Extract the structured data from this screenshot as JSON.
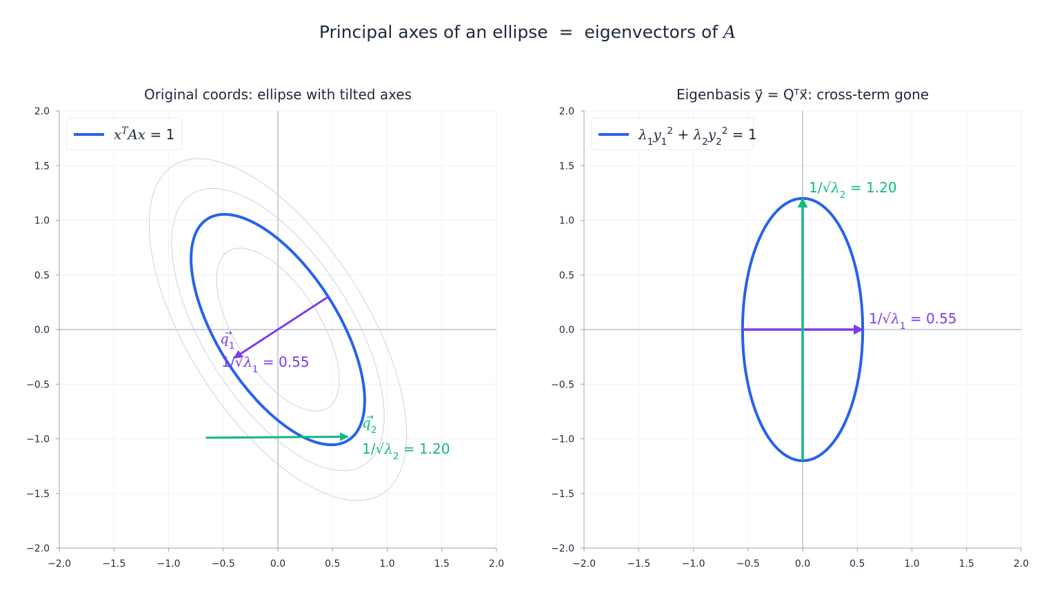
{
  "figure": {
    "title": "Principal axes of an ellipse  =  eigenvectors of A"
  },
  "colors": {
    "ellipse": "#2563eb",
    "q1": "#7c3aed",
    "q2": "#10b981",
    "contour": "#cbd0d8",
    "axis_line": "#94a3b8",
    "grid": "#eef1f5"
  },
  "chart_data": [
    {
      "type": "line",
      "title": "Original coords:  ellipse with tilted axes",
      "xlim": [
        -2.0,
        2.0
      ],
      "ylim": [
        -2.0,
        2.0
      ],
      "xticks": [
        "−2.0",
        "−1.5",
        "−1.0",
        "−0.5",
        "0.0",
        "0.5",
        "1.0",
        "1.5",
        "2.0"
      ],
      "yticks": [
        "−2.0",
        "−1.5",
        "−1.0",
        "−0.5",
        "0.0",
        "0.5",
        "1.0",
        "1.5",
        "2.0"
      ],
      "grid": true,
      "legend": {
        "placement": "upper-left",
        "entries": [
          "x⃗ᵀAx⃗ = 1"
        ]
      },
      "ellipse": {
        "center": [
          0,
          0
        ],
        "semi_major": 1.2,
        "semi_minor": 0.55,
        "major_angle_deg": -57.5
      },
      "contour_levels": [
        0.5,
        1.5,
        2.2
      ],
      "vectors": [
        {
          "name": "q1",
          "from": [
            0.46,
            0.3
          ],
          "to": [
            -0.4,
            -0.26
          ],
          "label": "q⃗₁",
          "annotation": "1/√λ₁ = 0.55"
        },
        {
          "name": "q2",
          "from": [
            -0.66,
            -0.99
          ],
          "to": [
            0.64,
            -0.98
          ],
          "label": "q⃗₂",
          "annotation": "1/√λ₂ = 1.20"
        }
      ]
    },
    {
      "type": "line",
      "title": "Eigenbasis y⃗ = Qᵀx⃗:  cross-term gone",
      "xlim": [
        -2.0,
        2.0
      ],
      "ylim": [
        -2.0,
        2.0
      ],
      "xticks": [
        "−2.0",
        "−1.5",
        "−1.0",
        "−0.5",
        "0.0",
        "0.5",
        "1.0",
        "1.5",
        "2.0"
      ],
      "yticks": [
        "−2.0",
        "−1.5",
        "−1.0",
        "−0.5",
        "0.0",
        "0.5",
        "1.0",
        "1.5",
        "2.0"
      ],
      "grid": true,
      "legend": {
        "placement": "upper-left",
        "entries": [
          "λ₁y₁² + λ₂y₂² = 1"
        ]
      },
      "ellipse": {
        "center": [
          0,
          0
        ],
        "semi_x": 0.55,
        "semi_y": 1.2
      },
      "vectors": [
        {
          "name": "q1",
          "from": [
            0,
            0
          ],
          "to": [
            0.55,
            0
          ],
          "annotation": "1/√λ₁ = 0.55"
        },
        {
          "name": "q2",
          "from": [
            0,
            -1.2
          ],
          "to": [
            0,
            1.2
          ],
          "annotation": "1/√λ₂ = 1.20"
        }
      ]
    }
  ]
}
